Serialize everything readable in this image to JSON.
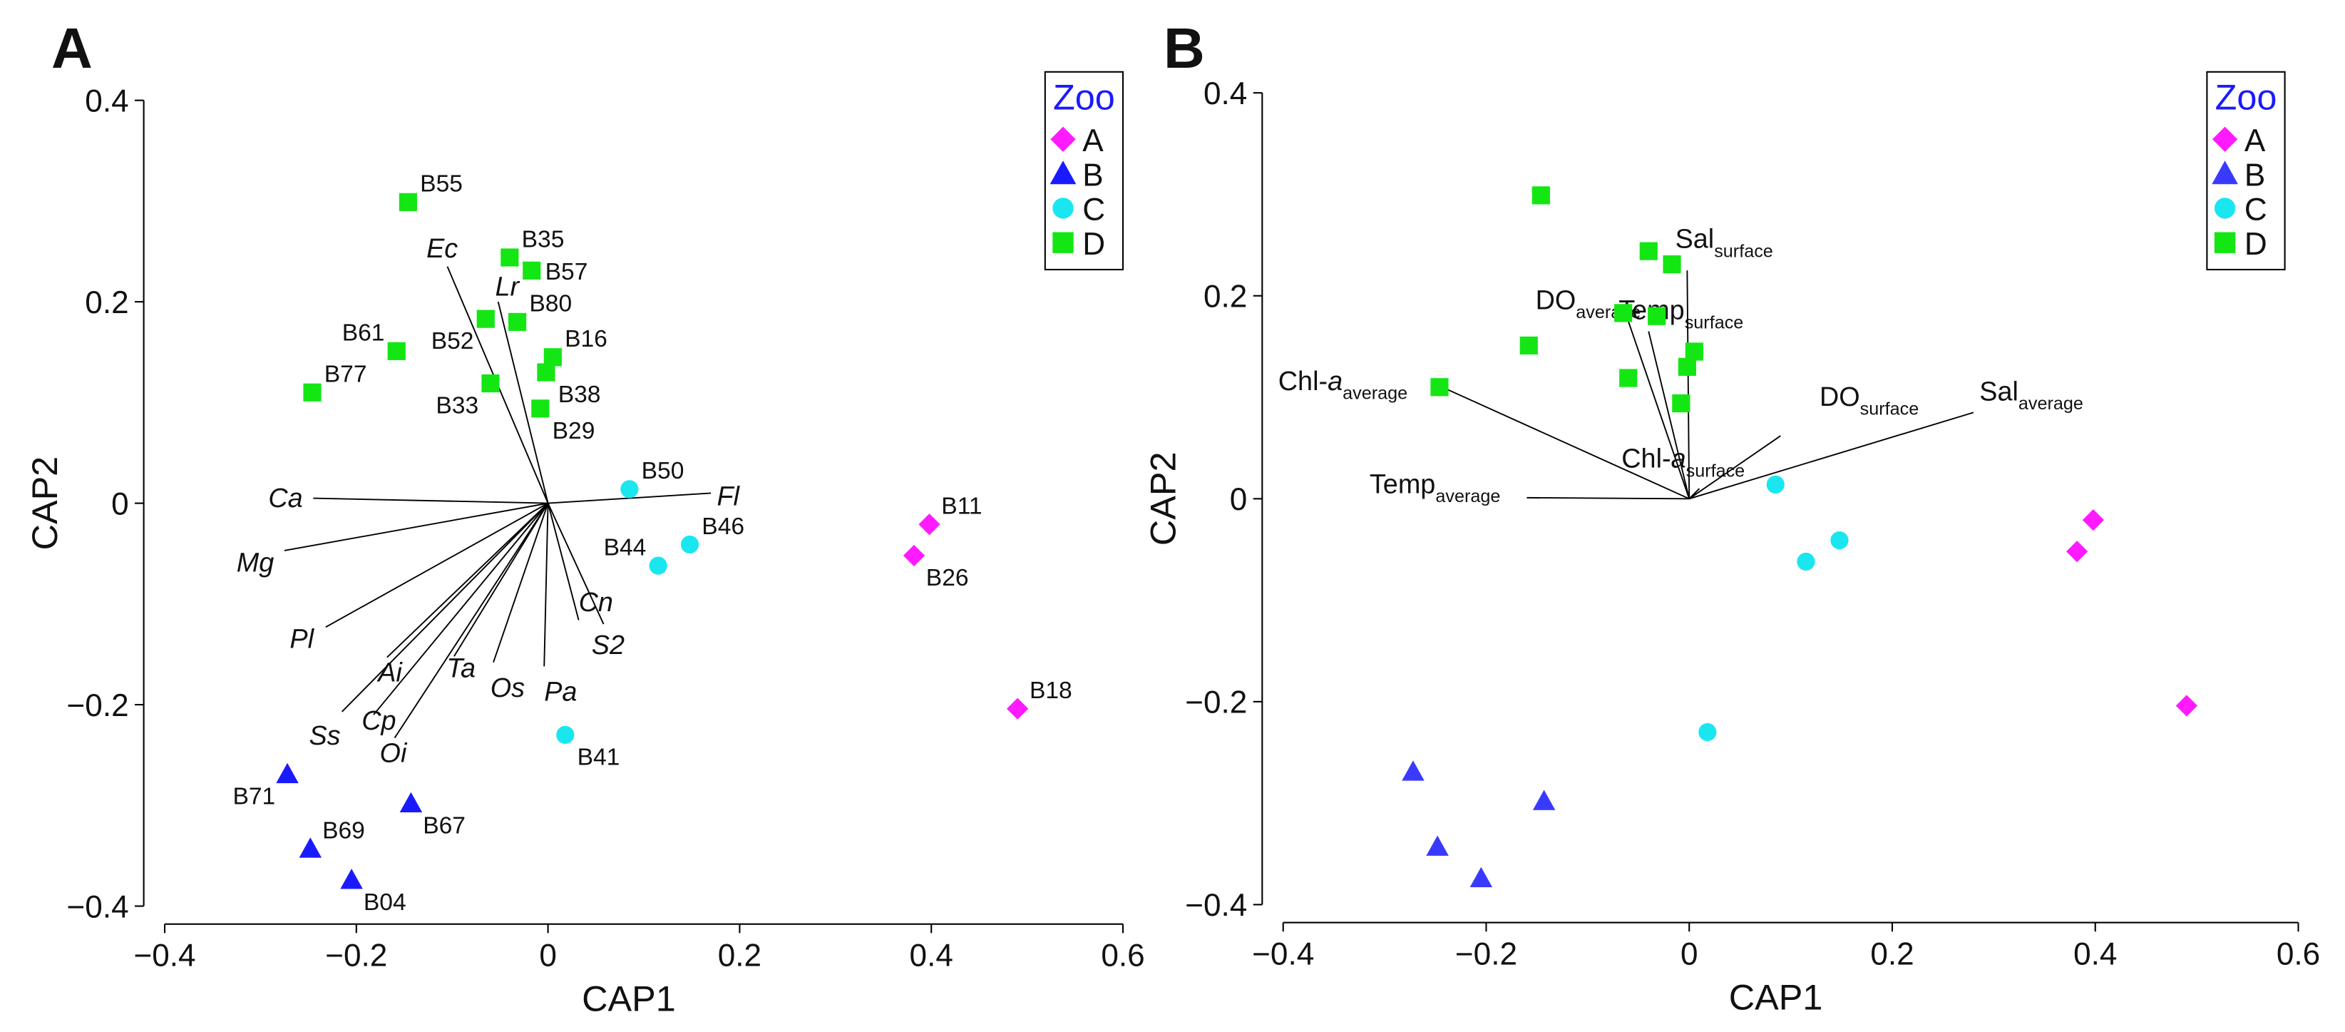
{
  "chart_data": [
    {
      "panel": "A",
      "type": "scatter",
      "xlabel": "CAP1",
      "ylabel": "CAP2",
      "xlim": [
        -0.4,
        0.6
      ],
      "ylim": [
        -0.4,
        0.4
      ],
      "xticks": [
        "−0.4",
        "−0.2",
        "0",
        "0.2",
        "0.4",
        "0.6"
      ],
      "yticks": [
        "0.4",
        "0.2",
        "0",
        "−0.2",
        "−0.4"
      ],
      "legend": {
        "title": "Zoo",
        "position": "top-right",
        "entries": [
          {
            "label": "A",
            "group": "A"
          },
          {
            "label": "B",
            "group": "B"
          },
          {
            "label": "C",
            "group": "C"
          },
          {
            "label": "D",
            "group": "D"
          }
        ]
      },
      "groups": {
        "A": {
          "marker": "diamond",
          "color": "#ff1aff"
        },
        "B": {
          "marker": "triangle",
          "color": "#1a1aff"
        },
        "C": {
          "marker": "circle",
          "color": "#1ae6f0"
        },
        "D": {
          "marker": "square",
          "color": "#14e614"
        }
      },
      "points": [
        {
          "label": "B11",
          "x": 0.398,
          "y": -0.021,
          "group": "A",
          "anchor": "ne"
        },
        {
          "label": "B26",
          "x": 0.382,
          "y": -0.052,
          "group": "A",
          "anchor": "se"
        },
        {
          "label": "B18",
          "x": 0.49,
          "y": -0.204,
          "group": "A",
          "anchor": "ne"
        },
        {
          "label": "B71",
          "x": -0.272,
          "y": -0.269,
          "group": "B",
          "anchor": "sw"
        },
        {
          "label": "B69",
          "x": -0.248,
          "y": -0.343,
          "group": "B",
          "anchor": "ne"
        },
        {
          "label": "B04",
          "x": -0.205,
          "y": -0.374,
          "group": "B",
          "anchor": "se"
        },
        {
          "label": "B67",
          "x": -0.143,
          "y": -0.298,
          "group": "B",
          "anchor": "se"
        },
        {
          "label": "B50",
          "x": 0.085,
          "y": 0.014,
          "group": "C",
          "anchor": "ne"
        },
        {
          "label": "B46",
          "x": 0.148,
          "y": -0.041,
          "group": "C",
          "anchor": "ne"
        },
        {
          "label": "B44",
          "x": 0.115,
          "y": -0.062,
          "group": "C",
          "anchor": "nw"
        },
        {
          "label": "B41",
          "x": 0.018,
          "y": -0.23,
          "group": "C",
          "anchor": "se"
        },
        {
          "label": "B55",
          "x": -0.146,
          "y": 0.299,
          "group": "D",
          "anchor": "ne"
        },
        {
          "label": "B35",
          "x": -0.04,
          "y": 0.244,
          "group": "D",
          "anchor": "ne"
        },
        {
          "label": "B57",
          "x": -0.017,
          "y": 0.231,
          "group": "D",
          "anchor": "e"
        },
        {
          "label": "B80",
          "x": -0.032,
          "y": 0.18,
          "group": "D",
          "anchor": "ne"
        },
        {
          "label": "B52",
          "x": -0.065,
          "y": 0.183,
          "group": "D",
          "anchor": "sw"
        },
        {
          "label": "B16",
          "x": 0.005,
          "y": 0.145,
          "group": "D",
          "anchor": "ne"
        },
        {
          "label": "B61",
          "x": -0.158,
          "y": 0.151,
          "group": "D",
          "anchor": "nw"
        },
        {
          "label": "B77",
          "x": -0.246,
          "y": 0.11,
          "group": "D",
          "anchor": "ne"
        },
        {
          "label": "B33",
          "x": -0.06,
          "y": 0.119,
          "group": "D",
          "anchor": "sw"
        },
        {
          "label": "B38",
          "x": -0.002,
          "y": 0.13,
          "group": "D",
          "anchor": "se"
        },
        {
          "label": "B29",
          "x": -0.008,
          "y": 0.094,
          "group": "D",
          "anchor": "se"
        }
      ],
      "vectors": [
        {
          "label": "Ec",
          "x": -0.105,
          "y": 0.235,
          "italic": true
        },
        {
          "label": "Lr",
          "x": -0.052,
          "y": 0.2,
          "italic": true
        },
        {
          "label": "Ca",
          "x": -0.245,
          "y": 0.005,
          "italic": true
        },
        {
          "label": "Fl",
          "x": 0.17,
          "y": 0.01,
          "italic": true
        },
        {
          "label": "Mg",
          "x": -0.275,
          "y": -0.047,
          "italic": true
        },
        {
          "label": "Pl",
          "x": -0.232,
          "y": -0.123,
          "italic": true
        },
        {
          "label": "Ai",
          "x": -0.168,
          "y": -0.153,
          "italic": true
        },
        {
          "label": "Ta",
          "x": -0.098,
          "y": -0.152,
          "italic": true
        },
        {
          "label": "Os",
          "x": -0.057,
          "y": -0.158,
          "italic": true
        },
        {
          "label": "Pa",
          "x": -0.004,
          "y": -0.162,
          "italic": true
        },
        {
          "label": "Cn",
          "x": 0.032,
          "y": -0.116,
          "italic": true
        },
        {
          "label": "S2",
          "x": 0.058,
          "y": -0.12,
          "italic": true
        },
        {
          "label": "Ss",
          "x": -0.215,
          "y": -0.207,
          "italic": true
        },
        {
          "label": "Cp",
          "x": -0.182,
          "y": -0.21,
          "italic": true
        },
        {
          "label": "Oi",
          "x": -0.16,
          "y": -0.233,
          "italic": true
        }
      ]
    },
    {
      "panel": "B",
      "type": "scatter",
      "xlabel": "CAP1",
      "ylabel": "CAP2",
      "xlim": [
        -0.4,
        0.6
      ],
      "ylim": [
        -0.4,
        0.4
      ],
      "xticks": [
        "−0.4",
        "−0.2",
        "0",
        "0.2",
        "0.4",
        "0.6"
      ],
      "yticks": [
        "0.4",
        "0.2",
        "0",
        "−0.2",
        "−0.4"
      ],
      "legend": {
        "title": "Zoo",
        "position": "top-right",
        "entries": [
          {
            "label": "A",
            "group": "A"
          },
          {
            "label": "B",
            "group": "B"
          },
          {
            "label": "C",
            "group": "C"
          },
          {
            "label": "D",
            "group": "D"
          }
        ]
      },
      "groups": {
        "A": {
          "marker": "diamond",
          "color": "#ff1aff"
        },
        "B": {
          "marker": "triangle",
          "color": "#3a3aff"
        },
        "C": {
          "marker": "circle",
          "color": "#1ae6f0"
        },
        "D": {
          "marker": "square",
          "color": "#14e614"
        }
      },
      "points": [
        {
          "x": 0.398,
          "y": -0.021,
          "group": "A"
        },
        {
          "x": 0.382,
          "y": -0.052,
          "group": "A"
        },
        {
          "x": 0.49,
          "y": -0.204,
          "group": "A"
        },
        {
          "x": -0.272,
          "y": -0.269,
          "group": "B"
        },
        {
          "x": -0.248,
          "y": -0.343,
          "group": "B"
        },
        {
          "x": -0.205,
          "y": -0.374,
          "group": "B"
        },
        {
          "x": -0.143,
          "y": -0.298,
          "group": "B"
        },
        {
          "x": 0.085,
          "y": 0.014,
          "group": "C"
        },
        {
          "x": 0.148,
          "y": -0.041,
          "group": "C"
        },
        {
          "x": 0.115,
          "y": -0.062,
          "group": "C"
        },
        {
          "x": 0.018,
          "y": -0.23,
          "group": "C"
        },
        {
          "x": -0.146,
          "y": 0.299,
          "group": "D"
        },
        {
          "x": -0.04,
          "y": 0.244,
          "group": "D"
        },
        {
          "x": -0.017,
          "y": 0.231,
          "group": "D"
        },
        {
          "x": -0.032,
          "y": 0.18,
          "group": "D"
        },
        {
          "x": -0.065,
          "y": 0.183,
          "group": "D"
        },
        {
          "x": 0.005,
          "y": 0.145,
          "group": "D"
        },
        {
          "x": -0.158,
          "y": 0.151,
          "group": "D"
        },
        {
          "x": -0.246,
          "y": 0.11,
          "group": "D"
        },
        {
          "x": -0.06,
          "y": 0.119,
          "group": "D"
        },
        {
          "x": -0.002,
          "y": 0.13,
          "group": "D"
        },
        {
          "x": -0.008,
          "y": 0.094,
          "group": "D"
        }
      ],
      "vectors": [
        {
          "label": "DO",
          "sub": "average",
          "x": -0.06,
          "y": 0.175
        },
        {
          "label": "Temp",
          "sub": "surface",
          "x": -0.04,
          "y": 0.165
        },
        {
          "label": "Sal",
          "sub": "surface",
          "x": -0.002,
          "y": 0.225
        },
        {
          "label": "Chl-",
          "italicPart": "a",
          "sub": "average",
          "x": -0.25,
          "y": 0.113
        },
        {
          "label": "DO",
          "sub": "surface",
          "x": 0.09,
          "y": 0.062
        },
        {
          "label": "Sal",
          "sub": "average",
          "x": 0.28,
          "y": 0.085
        },
        {
          "label": "Chl-",
          "italicPart": "a",
          "sub": "surface",
          "x": 0.01,
          "y": 0.01
        },
        {
          "label": "Temp",
          "sub": "average",
          "x": -0.16,
          "y": 0.001
        }
      ]
    }
  ]
}
